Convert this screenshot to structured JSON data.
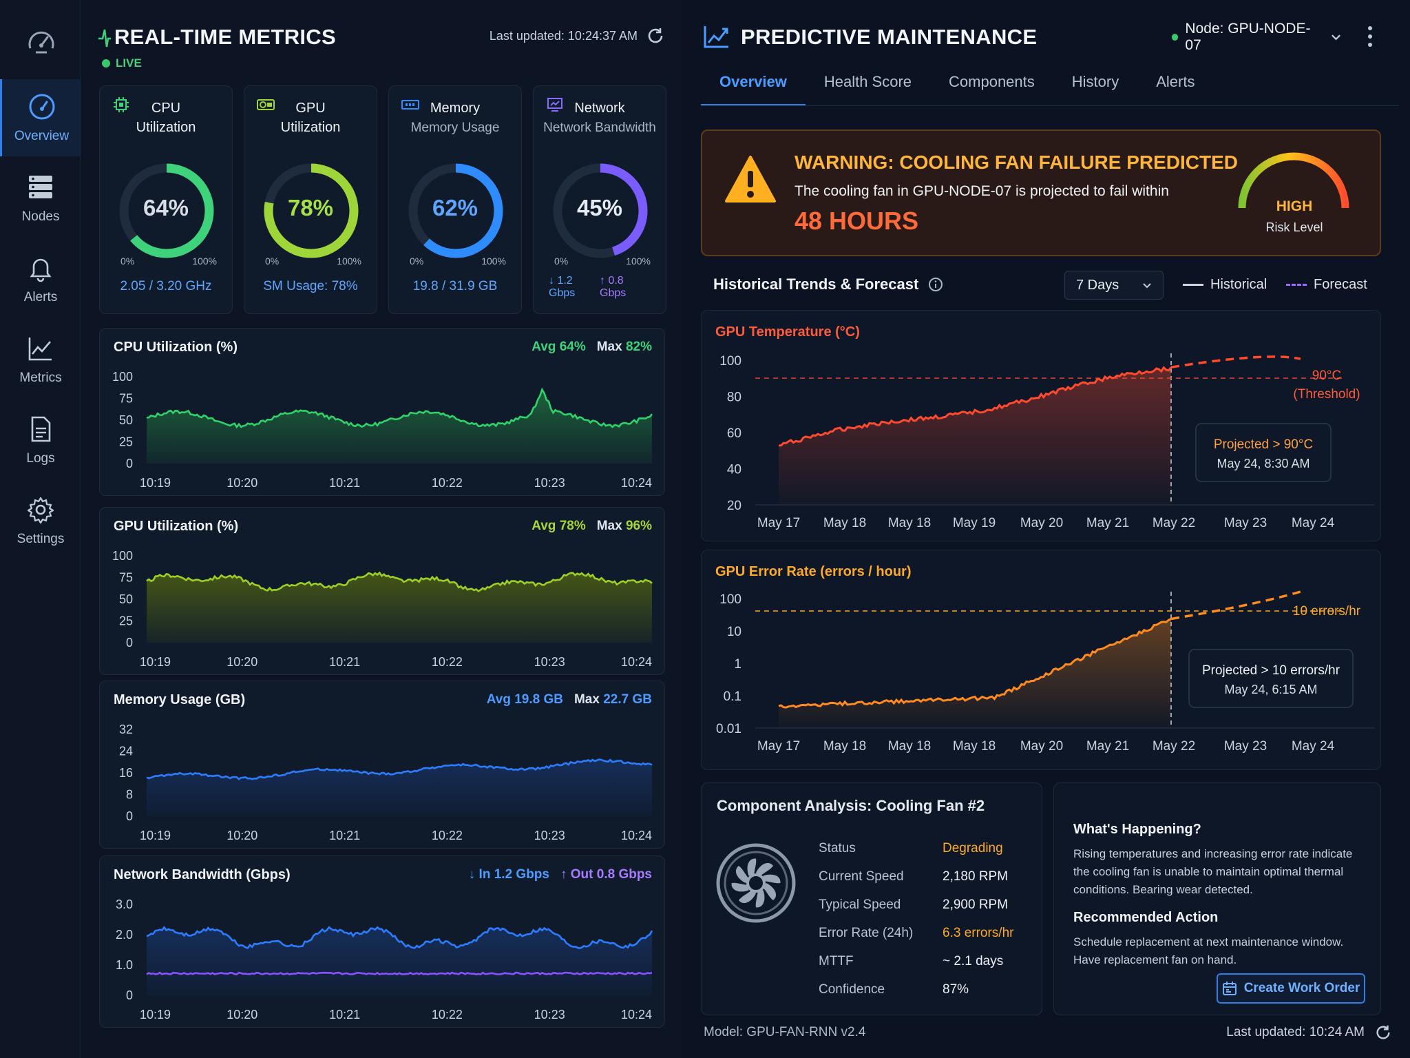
{
  "sidebar": {
    "items": [
      {
        "label": "Overview",
        "icon": "gauge-icon",
        "active": true
      },
      {
        "label": "Nodes",
        "icon": "server-icon"
      },
      {
        "label": "Alerts",
        "icon": "bell-icon"
      },
      {
        "label": "Metrics",
        "icon": "chart-icon"
      },
      {
        "label": "Logs",
        "icon": "document-icon"
      },
      {
        "label": "Settings",
        "icon": "gear-icon"
      }
    ]
  },
  "left": {
    "title": "REAL-TIME METRICS",
    "live": "LIVE",
    "last_updated": "Last updated: 10:24:37 AM",
    "gauges": [
      {
        "title1": "CPU",
        "title2": "Utilization",
        "value": "64%",
        "fraction": 0.64,
        "min": "0%",
        "max": "100%",
        "footer": "2.05 / 3.20 GHz",
        "color": "#3ed37a"
      },
      {
        "title1": "GPU",
        "title2": "Utilization",
        "value": "78%",
        "fraction": 0.78,
        "min": "0%",
        "max": "100%",
        "footer": "SM Usage: 78%",
        "color": "#9ed63a"
      },
      {
        "title1": "Memory",
        "title2": "Memory Usage",
        "value": "62%",
        "fraction": 0.62,
        "min": "0%",
        "max": "100%",
        "footer": "19.8 / 31.9 GB",
        "color": "#2e8cff"
      },
      {
        "title1": "Network",
        "title2": "Network Bandwidth",
        "value": "45%",
        "fraction": 0.45,
        "min": "0%",
        "max": "100%",
        "footer_in": "↓ 1.2 Gbps",
        "footer_out": "↑ 0.8 Gbps",
        "color": "#7b5cff"
      }
    ],
    "charts": [
      {
        "title": "CPU Utilization (%)",
        "stat1_label": "Avg",
        "stat1": "64%",
        "stat2_label": "Max",
        "stat2": "82%",
        "stat_color": "#3ed37a",
        "ticks": [
          "100",
          "75",
          "50",
          "25",
          "0"
        ],
        "ymax": 100,
        "color": "#2fd36a",
        "fill": "#1f6a3c"
      },
      {
        "title": "GPU Utilization (%)",
        "stat1_label": "Avg",
        "stat1": "78%",
        "stat2_label": "Max",
        "stat2": "96%",
        "stat_color": "#a6d63a",
        "ticks": [
          "100",
          "75",
          "50",
          "25",
          "0"
        ],
        "ymax": 100,
        "color": "#9ecf24",
        "fill": "#4a5d14"
      },
      {
        "title": "Memory Usage (GB)",
        "stat1_label": "Avg",
        "stat1": "19.8 GB",
        "stat2_label": "Max",
        "stat2": "22.7 GB",
        "stat_color": "#4d9cff",
        "ticks": [
          "32",
          "24",
          "16",
          "8",
          "0"
        ],
        "ymax": 32,
        "color": "#2c7cff",
        "fill": "#16305e"
      },
      {
        "title": "Network Bandwidth (Gbps)",
        "stat1_label": "↓ In",
        "stat1": "1.2 Gbps",
        "stat2_label": "↑ Out",
        "stat2": "0.8 Gbps",
        "stat_color": "#4d9cff",
        "ticks": [
          "3.0",
          "2.0",
          "1.0",
          "0"
        ],
        "ymax": 3,
        "color": "#2c7cff",
        "fill": "#16305e"
      }
    ],
    "time_ticks": [
      "10:19",
      "10:20",
      "10:21",
      "10:22",
      "10:23",
      "10:24"
    ]
  },
  "right": {
    "title": "PREDICTIVE MAINTENANCE",
    "node": "Node: GPU-NODE-07",
    "tabs": [
      "Overview",
      "Health Score",
      "Components",
      "History",
      "Alerts"
    ],
    "warning": {
      "title": "WARNING: COOLING FAN FAILURE PREDICTED",
      "desc": "The cooling fan in GPU-NODE-07 is projected to fail within",
      "hours": "48 HOURS",
      "risk": "HIGH",
      "risk_sub": "Risk Level"
    },
    "hist_title": "Historical Trends & Forecast",
    "range": "7 Days",
    "legend_hist": "Historical",
    "legend_fc": "Forecast",
    "temp": {
      "title": "GPU Temperature (°C)",
      "ticks": [
        "100",
        "80",
        "60",
        "40",
        "20"
      ],
      "x_ticks": [
        "May 17",
        "May 18",
        "May 18",
        "May 19",
        "May 20",
        "May 21",
        "May 22",
        "May 23",
        "May 24"
      ],
      "threshold1": "90°C",
      "threshold2": "(Threshold)",
      "proj1": "Projected > 90°C",
      "proj2": "May 24, 8:30 AM"
    },
    "err": {
      "title": "GPU Error Rate (errors / hour)",
      "ticks": [
        "100",
        "10",
        "1",
        "0.1",
        "0.01"
      ],
      "x_ticks": [
        "May 17",
        "May 18",
        "May 18",
        "May 18",
        "May 20",
        "May 21",
        "May 22",
        "May 23",
        "May 24"
      ],
      "threshold": "10 errors/hr",
      "proj1": "Projected > 10 errors/hr",
      "proj2": "May 24, 6:15 AM"
    },
    "component": {
      "title": "Component Analysis: Cooling Fan #2",
      "rows": [
        {
          "label": "Status",
          "value": "Degrading",
          "orange": true
        },
        {
          "label": "Current Speed",
          "value": "2,180 RPM"
        },
        {
          "label": "Typical Speed",
          "value": "2,900 RPM"
        },
        {
          "label": "Error Rate (24h)",
          "value": "6.3 errors/hr",
          "orange": true
        },
        {
          "label": "MTTF",
          "value": "~ 2.1 days"
        },
        {
          "label": "Confidence",
          "value": "87%"
        }
      ]
    },
    "what_title": "What's Happening?",
    "what_1": "Rising temperatures and increasing error rate indicate",
    "what_2": "the cooling fan is unable to maintain optimal thermal",
    "what_3": "conditions. Bearing wear detected.",
    "rec_title": "Recommended Action",
    "rec_1": "Schedule replacement at next maintenance window.",
    "rec_2": "Have replacement fan on hand.",
    "button": "Create Work Order",
    "model": "Model: GPU-FAN-RNN v2.4",
    "last_updated": "Last updated: 10:24 AM"
  }
}
